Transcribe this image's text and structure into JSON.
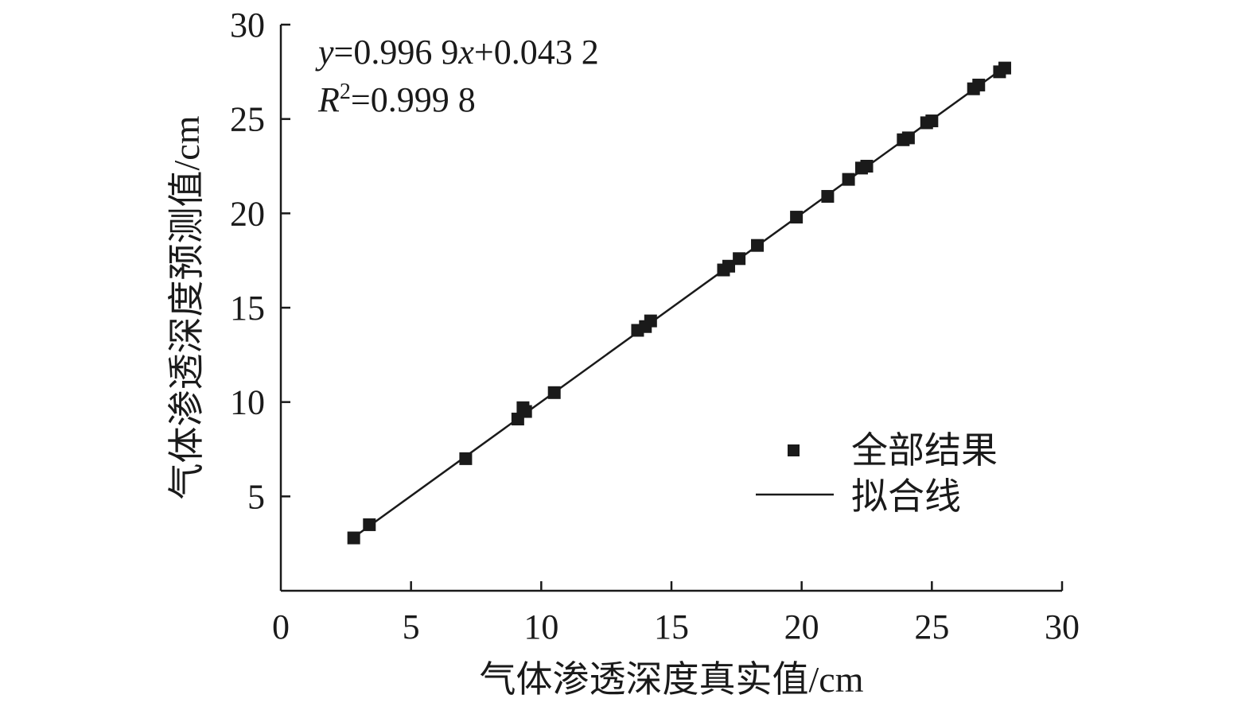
{
  "chart_data": {
    "type": "scatter",
    "title": "",
    "xlabel": "气体渗透深度真实值/cm",
    "ylabel": "气体渗透深度预测值/cm",
    "xlim": [
      0,
      30
    ],
    "ylim": [
      0,
      30
    ],
    "x_ticks": [
      "0",
      "5",
      "10",
      "15",
      "20",
      "25",
      "30"
    ],
    "y_ticks": [
      "5",
      "10",
      "15",
      "20",
      "25",
      "30"
    ],
    "grid": false,
    "legend_position": "bottom-right",
    "equation": {
      "y_var": "y",
      "y_rest": "=0.996 9",
      "x_var": "x",
      "x_rest": "+0.043 2",
      "r_var": "R",
      "r_sup": "2",
      "r_rest": "=0.999 8"
    },
    "series": [
      {
        "name": "全部结果",
        "marker": "square",
        "color": "#1a1a1a",
        "points": [
          [
            2.8,
            2.8
          ],
          [
            3.4,
            3.5
          ],
          [
            7.1,
            7.0
          ],
          [
            9.1,
            9.1
          ],
          [
            9.3,
            9.7
          ],
          [
            9.4,
            9.5
          ],
          [
            10.5,
            10.5
          ],
          [
            13.7,
            13.8
          ],
          [
            14.0,
            14.0
          ],
          [
            14.2,
            14.3
          ],
          [
            17.0,
            17.0
          ],
          [
            17.2,
            17.2
          ],
          [
            17.6,
            17.6
          ],
          [
            18.3,
            18.3
          ],
          [
            19.8,
            19.8
          ],
          [
            21.0,
            20.9
          ],
          [
            21.8,
            21.8
          ],
          [
            22.3,
            22.4
          ],
          [
            22.5,
            22.5
          ],
          [
            23.9,
            23.9
          ],
          [
            24.1,
            24.0
          ],
          [
            24.8,
            24.8
          ],
          [
            25.0,
            24.9
          ],
          [
            26.6,
            26.6
          ],
          [
            26.8,
            26.8
          ],
          [
            27.6,
            27.5
          ],
          [
            27.8,
            27.7
          ]
        ]
      },
      {
        "name": "拟合线",
        "type": "line",
        "color": "#1a1a1a",
        "slope": 0.9969,
        "intercept": 0.0432,
        "x_range": [
          2.8,
          27.8
        ]
      }
    ]
  }
}
